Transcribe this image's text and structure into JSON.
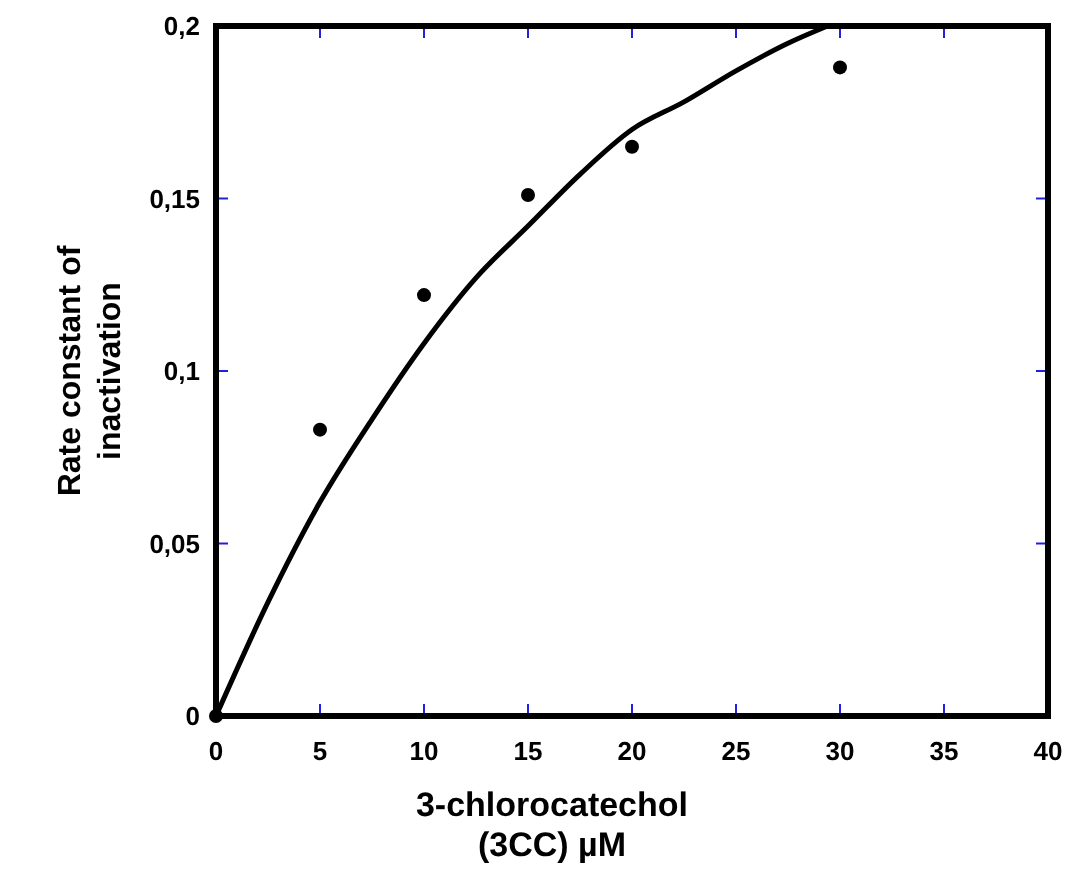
{
  "chart_data": {
    "type": "scatter",
    "xlabel": "3-chlorocatechol\n(3CC) µM",
    "ylabel": "Rate constant of\ninactivation",
    "xlim": [
      0,
      40
    ],
    "xticks": [
      0,
      5,
      10,
      15,
      20,
      25,
      30,
      35,
      40
    ],
    "ylim": [
      0,
      0.2
    ],
    "yticks": [
      {
        "value": 0,
        "label": "0"
      },
      {
        "value": 0.05,
        "label": "0,05"
      },
      {
        "value": 0.1,
        "label": "0,1"
      },
      {
        "value": 0.15,
        "label": "0,15"
      },
      {
        "value": 0.2,
        "label": "0,2"
      }
    ],
    "grid": false,
    "marker": "circle",
    "series": [
      {
        "color": "#000000",
        "x": [
          0,
          5,
          10,
          15,
          20,
          30
        ],
        "values": [
          0,
          0.083,
          0.122,
          0.151,
          0.165,
          0.188
        ]
      },
      {
        "type": "line",
        "color": "#000000",
        "line_style": "solid",
        "marker": "none",
        "x": [
          0,
          2.5,
          5,
          7.5,
          10,
          12.5,
          15,
          17.5,
          20,
          22.5,
          25,
          27.5,
          29.4
        ],
        "values": [
          0,
          0.033,
          0.062,
          0.086,
          0.108,
          0.127,
          0.142,
          0.157,
          0.17,
          0.178,
          0.187,
          0.195,
          0.2
        ]
      }
    ]
  }
}
